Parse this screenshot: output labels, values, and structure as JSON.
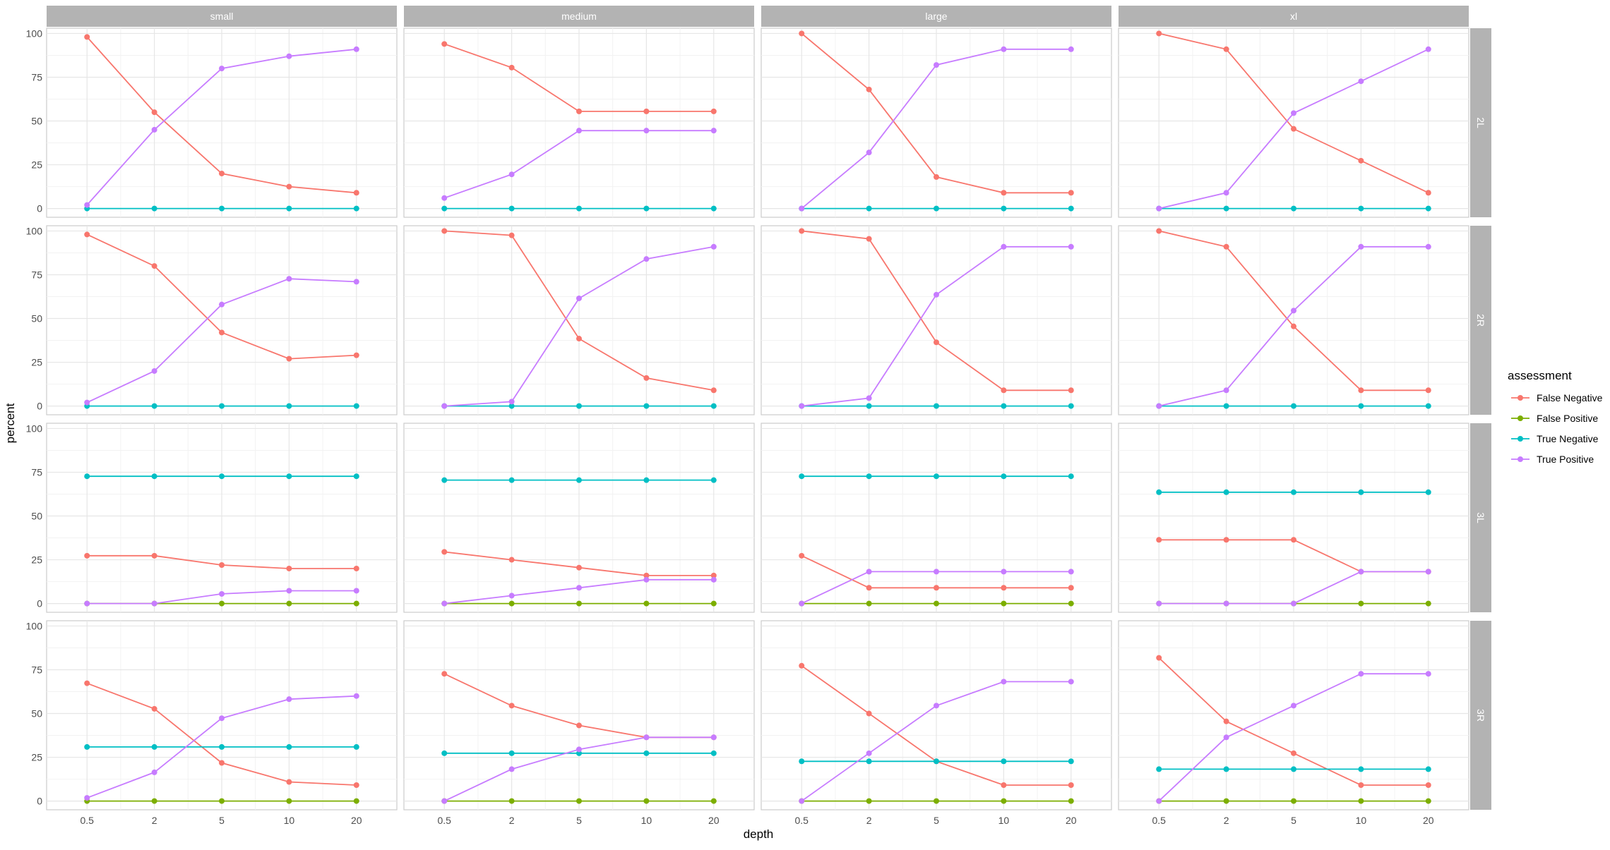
{
  "chart_data": {
    "type": "line",
    "layout": "facet-grid",
    "xlabel": "depth",
    "ylabel": "percent",
    "x": [
      "0.5",
      "2",
      "5",
      "10",
      "20"
    ],
    "ylim": [
      -5,
      103
    ],
    "y_ticks": [
      0,
      25,
      50,
      75,
      100
    ],
    "grid": true,
    "legend": {
      "title": "assessment",
      "position": "right",
      "entries": [
        {
          "name": "False Negative",
          "color": "#F8766D"
        },
        {
          "name": "False Positive",
          "color": "#7CAE00"
        },
        {
          "name": "True Negative",
          "color": "#00BFC4"
        },
        {
          "name": "True Positive",
          "color": "#C77CFF"
        }
      ]
    },
    "columns": [
      "small",
      "medium",
      "large",
      "xl"
    ],
    "rows": [
      "2L",
      "2R",
      "3L",
      "3R"
    ],
    "panels": [
      {
        "row": "2L",
        "col": "small",
        "series": {
          "False Negative": [
            98,
            55,
            20,
            12.5,
            9
          ],
          "True Negative": [
            0,
            0,
            0,
            0,
            0
          ],
          "True Positive": [
            2,
            45,
            80,
            87,
            91
          ]
        }
      },
      {
        "row": "2L",
        "col": "medium",
        "series": {
          "False Negative": [
            94,
            80.5,
            55.5,
            55.5,
            55.5
          ],
          "True Negative": [
            0,
            0,
            0,
            0,
            0
          ],
          "True Positive": [
            6,
            19.5,
            44.5,
            44.5,
            44.5
          ]
        }
      },
      {
        "row": "2L",
        "col": "large",
        "series": {
          "False Negative": [
            100,
            68,
            18,
            9,
            9
          ],
          "True Negative": [
            0,
            0,
            0,
            0,
            0
          ],
          "True Positive": [
            0,
            32,
            82,
            91,
            91
          ]
        }
      },
      {
        "row": "2L",
        "col": "xl",
        "series": {
          "False Negative": [
            100,
            91,
            45.5,
            27.3,
            9
          ],
          "True Negative": [
            0,
            0,
            0,
            0,
            0
          ],
          "True Positive": [
            0,
            9,
            54.5,
            72.7,
            91
          ]
        }
      },
      {
        "row": "2R",
        "col": "small",
        "series": {
          "False Negative": [
            98,
            80,
            42,
            27,
            29
          ],
          "True Negative": [
            0,
            0,
            0,
            0,
            0
          ],
          "True Positive": [
            2,
            20,
            58,
            72.7,
            71
          ]
        }
      },
      {
        "row": "2R",
        "col": "medium",
        "series": {
          "False Negative": [
            100,
            97.5,
            38.5,
            16,
            9
          ],
          "True Negative": [
            0,
            0,
            0,
            0,
            0
          ],
          "True Positive": [
            0,
            2.5,
            61.5,
            84,
            91
          ]
        }
      },
      {
        "row": "2R",
        "col": "large",
        "series": {
          "False Negative": [
            100,
            95.5,
            36.4,
            9,
            9
          ],
          "True Negative": [
            0,
            0,
            0,
            0,
            0
          ],
          "True Positive": [
            0,
            4.5,
            63.6,
            91,
            91
          ]
        }
      },
      {
        "row": "2R",
        "col": "xl",
        "series": {
          "False Negative": [
            100,
            91,
            45.5,
            9,
            9
          ],
          "True Negative": [
            0,
            0,
            0,
            0,
            0
          ],
          "True Positive": [
            0,
            9,
            54.5,
            91,
            91
          ]
        }
      },
      {
        "row": "3L",
        "col": "small",
        "series": {
          "False Negative": [
            27.3,
            27.3,
            22,
            20,
            20
          ],
          "False Positive": [
            0,
            0,
            0,
            0,
            0
          ],
          "True Negative": [
            72.7,
            72.7,
            72.7,
            72.7,
            72.7
          ],
          "True Positive": [
            0,
            0,
            5.5,
            7.3,
            7.3
          ]
        }
      },
      {
        "row": "3L",
        "col": "medium",
        "series": {
          "False Negative": [
            29.5,
            25,
            20.5,
            16,
            16
          ],
          "False Positive": [
            0,
            0,
            0,
            0,
            0
          ],
          "True Negative": [
            70.5,
            70.5,
            70.5,
            70.5,
            70.5
          ],
          "True Positive": [
            0,
            4.5,
            9,
            13.6,
            13.6
          ]
        }
      },
      {
        "row": "3L",
        "col": "large",
        "series": {
          "False Negative": [
            27.3,
            9,
            9,
            9,
            9
          ],
          "False Positive": [
            0,
            0,
            0,
            0,
            0
          ],
          "True Negative": [
            72.7,
            72.7,
            72.7,
            72.7,
            72.7
          ],
          "True Positive": [
            0,
            18.2,
            18.2,
            18.2,
            18.2
          ]
        }
      },
      {
        "row": "3L",
        "col": "xl",
        "series": {
          "False Negative": [
            36.4,
            36.4,
            36.4,
            18.2,
            18.2
          ],
          "False Positive": [
            0,
            0,
            0,
            0,
            0
          ],
          "True Negative": [
            63.6,
            63.6,
            63.6,
            63.6,
            63.6
          ],
          "True Positive": [
            0,
            0,
            0,
            18.2,
            18.2
          ]
        }
      },
      {
        "row": "3R",
        "col": "small",
        "series": {
          "False Negative": [
            67.3,
            52.7,
            21.8,
            10.9,
            9.1
          ],
          "False Positive": [
            0,
            0,
            0,
            0,
            0
          ],
          "True Negative": [
            30.9,
            30.9,
            30.9,
            30.9,
            30.9
          ],
          "True Positive": [
            1.8,
            16.4,
            47.3,
            58.2,
            60
          ]
        }
      },
      {
        "row": "3R",
        "col": "medium",
        "series": {
          "False Negative": [
            72.7,
            54.5,
            43.2,
            36.4,
            36.4
          ],
          "False Positive": [
            0,
            0,
            0,
            0,
            0
          ],
          "True Negative": [
            27.3,
            27.3,
            27.3,
            27.3,
            27.3
          ],
          "True Positive": [
            0,
            18.2,
            29.5,
            36.4,
            36.4
          ]
        }
      },
      {
        "row": "3R",
        "col": "large",
        "series": {
          "False Negative": [
            77.3,
            50,
            22.7,
            9.1,
            9.1
          ],
          "False Positive": [
            0,
            0,
            0,
            0,
            0
          ],
          "True Negative": [
            22.7,
            22.7,
            22.7,
            22.7,
            22.7
          ],
          "True Positive": [
            0,
            27.3,
            54.5,
            68.2,
            68.2
          ]
        }
      },
      {
        "row": "3R",
        "col": "xl",
        "series": {
          "False Negative": [
            81.8,
            45.5,
            27.3,
            9.1,
            9.1
          ],
          "False Positive": [
            0,
            0,
            0,
            0,
            0
          ],
          "True Negative": [
            18.2,
            18.2,
            18.2,
            18.2,
            18.2
          ],
          "True Positive": [
            0,
            36.4,
            54.5,
            72.7,
            72.7
          ]
        }
      }
    ]
  }
}
